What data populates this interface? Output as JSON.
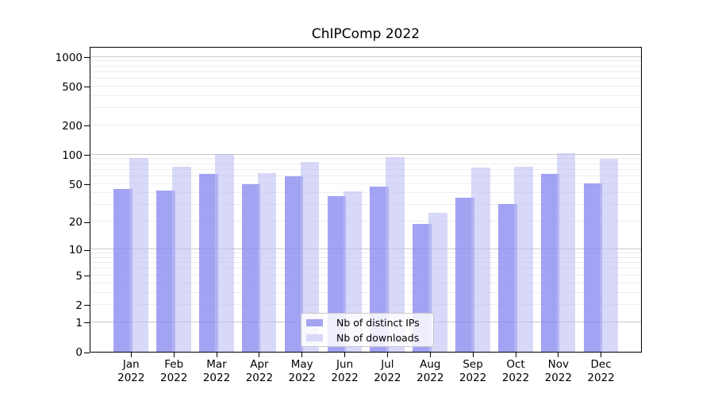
{
  "chart_data": {
    "type": "bar",
    "title": "ChIPComp 2022",
    "categories": [
      "Jan 2022",
      "Feb 2022",
      "Mar 2022",
      "Apr 2022",
      "May 2022",
      "Jun 2022",
      "Jul 2022",
      "Aug 2022",
      "Sep 2022",
      "Oct 2022",
      "Nov 2022",
      "Dec 2022"
    ],
    "x_axis": {
      "months": [
        "Jan",
        "Feb",
        "Mar",
        "Apr",
        "May",
        "Jun",
        "Jul",
        "Aug",
        "Sep",
        "Oct",
        "Nov",
        "Dec"
      ],
      "year": "2022"
    },
    "series": [
      {
        "name": "Nb of distinct IPs",
        "color": "#a4a4f0",
        "fill": "rgba(137,137,239,0.78)",
        "values": [
          44,
          43,
          63,
          50,
          60,
          37,
          47,
          19,
          36,
          31,
          63,
          51
        ]
      },
      {
        "name": "Nb of downloads",
        "color": "#d8d8f8",
        "fill": "rgba(190,190,243,0.6)",
        "values": [
          93,
          75,
          101,
          65,
          84,
          42,
          94,
          25,
          74,
          75,
          104,
          91
        ]
      }
    ],
    "y_axis": {
      "scale": "log1p",
      "tick_labels": [
        "0",
        "1",
        "2",
        "5",
        "10",
        "20",
        "50",
        "100",
        "200",
        "500",
        "1000"
      ],
      "tick_values": [
        0,
        1,
        2,
        5,
        10,
        20,
        50,
        100,
        200,
        500,
        1000
      ],
      "major_gridlines": [
        1,
        10,
        100,
        1000
      ],
      "minor_gridlines": [
        2,
        3,
        4,
        5,
        6,
        7,
        8,
        9,
        20,
        30,
        40,
        50,
        60,
        70,
        80,
        90,
        200,
        300,
        400,
        500,
        600,
        700,
        800,
        900
      ],
      "max_value": 1285
    },
    "ylim": [
      0,
      1285
    ],
    "grid": "horizontal-only",
    "legend": {
      "position": "bottom-center",
      "entries": [
        "Nb of distinct IPs",
        "Nb of downloads"
      ]
    }
  },
  "colors": {
    "grid_major": "#c9c9c9",
    "grid_minor": "#ededed",
    "axis": "#000000",
    "legend_border": "#c8c8c8",
    "background": "#ffffff",
    "text": "#000000"
  }
}
